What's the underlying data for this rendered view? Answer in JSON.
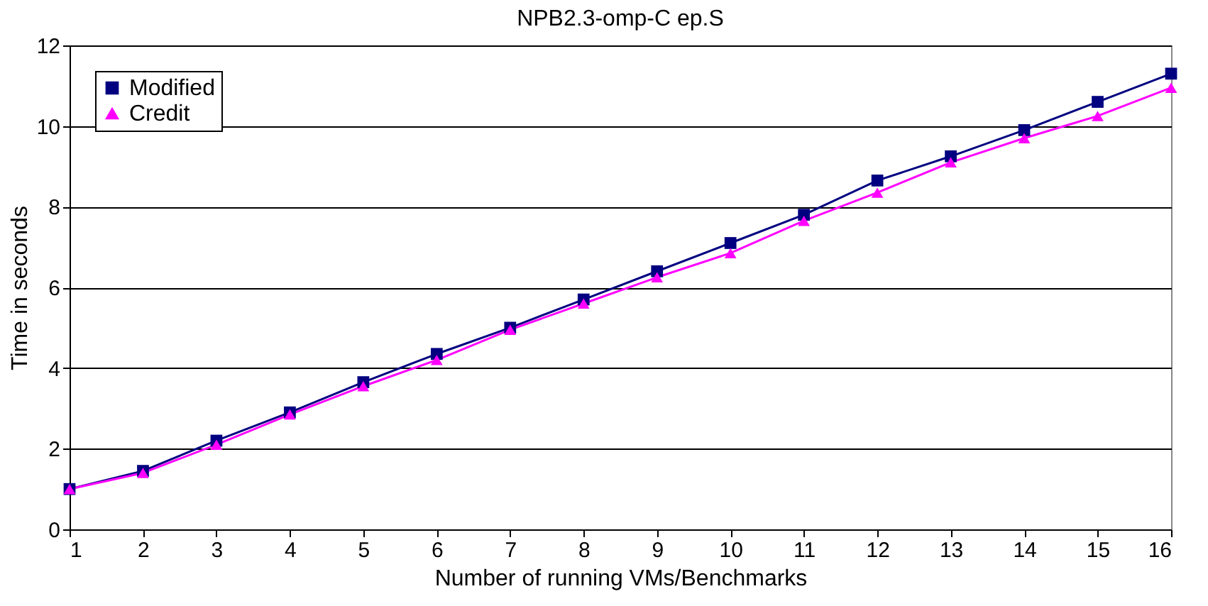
{
  "chart_data": {
    "type": "line",
    "title": "NPB2.3-omp-C ep.S",
    "xlabel": "Number of running VMs/Benchmarks",
    "ylabel": "Time in seconds",
    "x": [
      1,
      2,
      3,
      4,
      5,
      6,
      7,
      8,
      9,
      10,
      11,
      12,
      13,
      14,
      15,
      16
    ],
    "series": [
      {
        "name": "Modified",
        "color": "#000080",
        "marker": "square",
        "values": [
          1.0,
          1.45,
          2.2,
          2.9,
          3.65,
          4.35,
          5.0,
          5.7,
          6.4,
          7.1,
          7.8,
          8.65,
          9.25,
          9.9,
          10.6,
          11.3
        ]
      },
      {
        "name": "Credit",
        "color": "#ff00ff",
        "marker": "triangle",
        "values": [
          1.0,
          1.4,
          2.1,
          2.85,
          3.55,
          4.2,
          4.95,
          5.6,
          6.25,
          6.85,
          7.65,
          8.35,
          9.1,
          9.7,
          10.25,
          10.95
        ]
      }
    ],
    "xlim": [
      1,
      16
    ],
    "xticks": [
      1,
      2,
      3,
      4,
      5,
      6,
      7,
      8,
      9,
      10,
      11,
      12,
      13,
      14,
      15,
      16
    ],
    "ylim": [
      0,
      12
    ],
    "yticks": [
      0,
      2,
      4,
      6,
      8,
      10,
      12
    ],
    "grid": "y",
    "legend": "top left",
    "line_style": "solid"
  }
}
